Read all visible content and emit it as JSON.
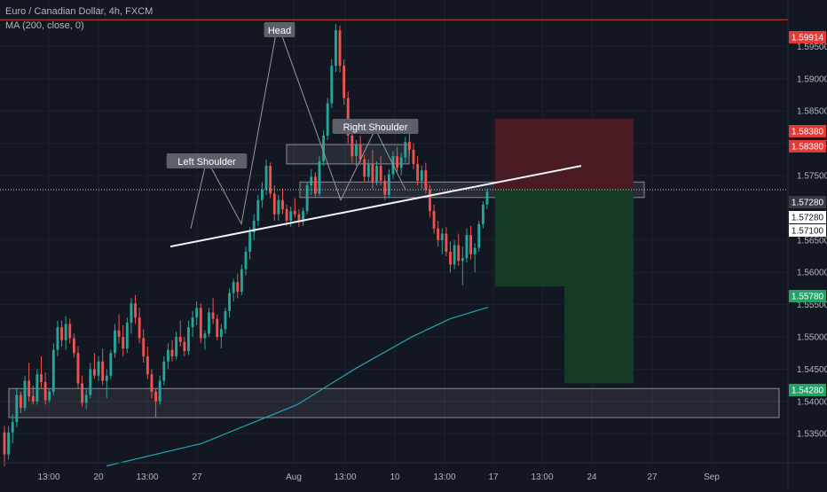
{
  "header": {
    "title": "Euro / Canadian Dollar, 4h, FXCM",
    "indicator": "MA (200, close, 0)"
  },
  "colors": {
    "background": "#131722",
    "up_candle": "#26a69a",
    "down_candle": "#ef5350",
    "moving_average": "#1fa7b5",
    "resistance_line": "#e53935",
    "stop_zone": "#4a1b22",
    "target_zone": "#153b26",
    "grid": "#1e2230",
    "axis_text": "#b2b5be"
  },
  "chart_data": {
    "type": "candlestick",
    "symbol": "EURCAD",
    "timeframe": "4h",
    "y_range": [
      1.5305,
      1.6022
    ],
    "y_ticks": [
      "1.53500",
      "1.54000",
      "1.54500",
      "1.55000",
      "1.55500",
      "1.56000",
      "1.56500",
      "1.57500",
      "1.58000",
      "1.58500",
      "1.59000",
      "1.59500"
    ],
    "x_ticks": [
      "13:00",
      "20",
      "13:00",
      "27",
      "Aug",
      "13:00",
      "10",
      "13:00",
      "17",
      "13:00",
      "24",
      "27",
      "Sep"
    ],
    "price_tags": [
      {
        "label": "1.59914",
        "color": "#e53935",
        "text_color": "#ffffff",
        "price": 1.59914
      },
      {
        "label": "1.58380",
        "color": "#e53935",
        "text_color": "#ffffff",
        "price": 1.5838
      },
      {
        "label": "1.58380",
        "color": "#e53935",
        "text_color": "#ffffff",
        "price": 1.5838
      },
      {
        "label": "1.57280",
        "color": "#363a45",
        "text_color": "#ffffff",
        "price": 1.5728
      },
      {
        "label": "1.57280",
        "color": "#ffffff",
        "text_color": "#131722",
        "price": 1.5728
      },
      {
        "label": "1.57100",
        "color": "#ffffff",
        "text_color": "#131722",
        "price": 1.571
      },
      {
        "label": "1.55780",
        "color": "#26a269",
        "text_color": "#ffffff",
        "price": 1.5578
      },
      {
        "label": "1.54280",
        "color": "#26a269",
        "text_color": "#ffffff",
        "price": 1.5428
      }
    ],
    "annotations": [
      "Head",
      "Left Shoulder",
      "Right Shoulder"
    ],
    "pattern": {
      "type": "head-and-shoulders",
      "left_shoulder": 1.5775,
      "head": 1.5985,
      "right_shoulder": 1.5822
    },
    "position": {
      "side": "short",
      "entry": 1.5728,
      "stop": 1.5838,
      "target_1": 1.5578,
      "target_2": 1.5428
    },
    "support_zone": [
      1.5375,
      1.542
    ],
    "resistance_level": 1.59914,
    "candles": [
      [
        1.5352,
        1.5362,
        1.53,
        1.5318
      ],
      [
        1.5318,
        1.5362,
        1.531,
        1.5352
      ],
      [
        1.5352,
        1.538,
        1.5335,
        1.5368
      ],
      [
        1.5368,
        1.542,
        1.536,
        1.541
      ],
      [
        1.541,
        1.5415,
        1.5382,
        1.539
      ],
      [
        1.539,
        1.544,
        1.5385,
        1.5432
      ],
      [
        1.5432,
        1.546,
        1.54,
        1.5408
      ],
      [
        1.5408,
        1.5425,
        1.5395,
        1.54
      ],
      [
        1.54,
        1.545,
        1.5395,
        1.5442
      ],
      [
        1.5442,
        1.547,
        1.542,
        1.543
      ],
      [
        1.543,
        1.5445,
        1.5395,
        1.5402
      ],
      [
        1.5402,
        1.542,
        1.5398,
        1.5415
      ],
      [
        1.5415,
        1.549,
        1.541,
        1.548
      ],
      [
        1.548,
        1.5525,
        1.547,
        1.5515
      ],
      [
        1.5515,
        1.5525,
        1.5485,
        1.5495
      ],
      [
        1.5495,
        1.5532,
        1.548,
        1.552
      ],
      [
        1.552,
        1.5528,
        1.549,
        1.5498
      ],
      [
        1.5498,
        1.5505,
        1.5468,
        1.5475
      ],
      [
        1.5475,
        1.5485,
        1.542,
        1.5428
      ],
      [
        1.5428,
        1.544,
        1.5392,
        1.5398
      ],
      [
        1.5398,
        1.542,
        1.5388,
        1.541
      ],
      [
        1.541,
        1.546,
        1.5405,
        1.545
      ],
      [
        1.545,
        1.5475,
        1.5435,
        1.544
      ],
      [
        1.544,
        1.547,
        1.5432,
        1.5462
      ],
      [
        1.5462,
        1.5482,
        1.5425,
        1.5432
      ],
      [
        1.5432,
        1.545,
        1.5405,
        1.544
      ],
      [
        1.544,
        1.548,
        1.5435,
        1.5475
      ],
      [
        1.5475,
        1.552,
        1.5468,
        1.551
      ],
      [
        1.551,
        1.5535,
        1.549,
        1.55
      ],
      [
        1.55,
        1.5518,
        1.547,
        1.5482
      ],
      [
        1.5482,
        1.553,
        1.5475,
        1.5522
      ],
      [
        1.5522,
        1.556,
        1.5505,
        1.5552
      ],
      [
        1.5552,
        1.5565,
        1.552,
        1.553
      ],
      [
        1.553,
        1.5545,
        1.549,
        1.5498
      ],
      [
        1.5498,
        1.5512,
        1.546,
        1.547
      ],
      [
        1.547,
        1.5485,
        1.5435,
        1.5442
      ],
      [
        1.5442,
        1.545,
        1.5405,
        1.5415
      ],
      [
        1.5415,
        1.542,
        1.5375,
        1.54
      ],
      [
        1.54,
        1.544,
        1.5395,
        1.5432
      ],
      [
        1.5432,
        1.547,
        1.5425,
        1.5462
      ],
      [
        1.5462,
        1.549,
        1.545,
        1.548
      ],
      [
        1.548,
        1.5495,
        1.5462,
        1.547
      ],
      [
        1.547,
        1.5508,
        1.5465,
        1.55
      ],
      [
        1.55,
        1.5525,
        1.5485,
        1.5492
      ],
      [
        1.5492,
        1.55,
        1.547,
        1.5478
      ],
      [
        1.5478,
        1.5525,
        1.5472,
        1.5515
      ],
      [
        1.5515,
        1.554,
        1.55,
        1.553
      ],
      [
        1.553,
        1.5555,
        1.5518,
        1.5545
      ],
      [
        1.5545,
        1.5552,
        1.549,
        1.5498
      ],
      [
        1.5498,
        1.551,
        1.548,
        1.5505
      ],
      [
        1.5505,
        1.5545,
        1.55,
        1.5538
      ],
      [
        1.5538,
        1.556,
        1.552,
        1.5528
      ],
      [
        1.5528,
        1.5535,
        1.5495,
        1.55
      ],
      [
        1.55,
        1.552,
        1.5482,
        1.5512
      ],
      [
        1.5512,
        1.5545,
        1.5505,
        1.554
      ],
      [
        1.554,
        1.5575,
        1.553,
        1.5568
      ],
      [
        1.5568,
        1.559,
        1.5555,
        1.5585
      ],
      [
        1.5585,
        1.5598,
        1.556,
        1.557
      ],
      [
        1.557,
        1.5612,
        1.5565,
        1.5605
      ],
      [
        1.5605,
        1.564,
        1.5595,
        1.5632
      ],
      [
        1.5632,
        1.567,
        1.562,
        1.5662
      ],
      [
        1.5662,
        1.569,
        1.565,
        1.568
      ],
      [
        1.568,
        1.572,
        1.5672,
        1.5712
      ],
      [
        1.5712,
        1.574,
        1.57,
        1.5728
      ],
      [
        1.5728,
        1.5775,
        1.572,
        1.5765
      ],
      [
        1.5765,
        1.577,
        1.5715,
        1.5722
      ],
      [
        1.5722,
        1.5735,
        1.568,
        1.569
      ],
      [
        1.569,
        1.572,
        1.568,
        1.5712
      ],
      [
        1.5712,
        1.573,
        1.569,
        1.5698
      ],
      [
        1.5698,
        1.5705,
        1.5672,
        1.568
      ],
      [
        1.568,
        1.5702,
        1.567,
        1.5695
      ],
      [
        1.5695,
        1.5715,
        1.5685,
        1.569
      ],
      [
        1.569,
        1.5698,
        1.567,
        1.5678
      ],
      [
        1.5678,
        1.57,
        1.5672,
        1.5695
      ],
      [
        1.5695,
        1.574,
        1.569,
        1.5735
      ],
      [
        1.5735,
        1.576,
        1.572,
        1.5748
      ],
      [
        1.5748,
        1.5755,
        1.5715,
        1.5722
      ],
      [
        1.5722,
        1.578,
        1.5718,
        1.5772
      ],
      [
        1.5772,
        1.582,
        1.5765,
        1.5812
      ],
      [
        1.5812,
        1.587,
        1.5805,
        1.5862
      ],
      [
        1.5862,
        1.593,
        1.5855,
        1.592
      ],
      [
        1.592,
        1.5985,
        1.591,
        1.5975
      ],
      [
        1.5975,
        1.5982,
        1.591,
        1.592
      ],
      [
        1.592,
        1.593,
        1.586,
        1.587
      ],
      [
        1.587,
        1.588,
        1.58,
        1.5812
      ],
      [
        1.5812,
        1.583,
        1.577,
        1.578
      ],
      [
        1.578,
        1.5805,
        1.5765,
        1.5798
      ],
      [
        1.5798,
        1.5812,
        1.577,
        1.5775
      ],
      [
        1.5775,
        1.5782,
        1.574,
        1.5748
      ],
      [
        1.5748,
        1.5775,
        1.574,
        1.5768
      ],
      [
        1.5768,
        1.579,
        1.573,
        1.574
      ],
      [
        1.574,
        1.5772,
        1.5735,
        1.5765
      ],
      [
        1.5765,
        1.578,
        1.5735,
        1.5742
      ],
      [
        1.5742,
        1.575,
        1.5712,
        1.572
      ],
      [
        1.572,
        1.576,
        1.5715,
        1.5752
      ],
      [
        1.5752,
        1.5788,
        1.5745,
        1.578
      ],
      [
        1.578,
        1.5795,
        1.5755,
        1.5762
      ],
      [
        1.5762,
        1.5785,
        1.575,
        1.5778
      ],
      [
        1.5778,
        1.581,
        1.577,
        1.5802
      ],
      [
        1.5802,
        1.5822,
        1.578,
        1.579
      ],
      [
        1.579,
        1.58,
        1.576,
        1.5768
      ],
      [
        1.5768,
        1.578,
        1.5735,
        1.5742
      ],
      [
        1.5742,
        1.5765,
        1.573,
        1.5758
      ],
      [
        1.5758,
        1.577,
        1.5722,
        1.5728
      ],
      [
        1.5728,
        1.5735,
        1.5685,
        1.5695
      ],
      [
        1.5695,
        1.5705,
        1.566,
        1.5668
      ],
      [
        1.5668,
        1.568,
        1.564,
        1.565
      ],
      [
        1.565,
        1.5668,
        1.5628,
        1.566
      ],
      [
        1.566,
        1.567,
        1.5625,
        1.5632
      ],
      [
        1.5632,
        1.5648,
        1.56,
        1.5612
      ],
      [
        1.5612,
        1.565,
        1.5605,
        1.5642
      ],
      [
        1.5642,
        1.566,
        1.561,
        1.5618
      ],
      [
        1.5618,
        1.564,
        1.558,
        1.5622
      ],
      [
        1.5622,
        1.5668,
        1.5615,
        1.5658
      ],
      [
        1.5658,
        1.5672,
        1.562,
        1.5628
      ],
      [
        1.5628,
        1.5645,
        1.56,
        1.5638
      ],
      [
        1.5638,
        1.568,
        1.5632,
        1.5675
      ],
      [
        1.5675,
        1.571,
        1.5668,
        1.5705
      ],
      [
        1.5705,
        1.573,
        1.5698,
        1.5725
      ]
    ],
    "moving_average_200": [
      [
        0.0,
        1.53
      ],
      [
        0.25,
        1.5335
      ],
      [
        0.5,
        1.5395
      ],
      [
        0.65,
        1.545
      ],
      [
        0.8,
        1.55
      ],
      [
        0.9,
        1.5528
      ],
      [
        1.0,
        1.5546
      ]
    ]
  }
}
